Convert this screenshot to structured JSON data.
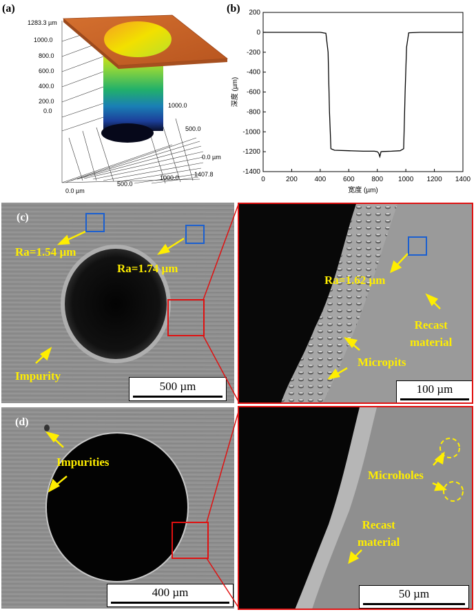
{
  "panel_labels": {
    "a": "(a)",
    "b": "(b)",
    "c": "(c)",
    "d": "(d)"
  },
  "panel_a": {
    "z_ticks": [
      "1283.3 µm",
      "1000.0",
      "800.0",
      "600.0",
      "400.0",
      "200.0",
      "0.0"
    ],
    "y_ticks": [
      "1000.0",
      "500.0",
      "0.0 µm"
    ],
    "x_ticks": [
      "0.0 µm",
      "500.0",
      "1000.0",
      "1407.8"
    ]
  },
  "chart_data": {
    "type": "line",
    "xlabel": "宽度 (µm)",
    "ylabel": "深度 (µm)",
    "xlim": [
      0,
      1400
    ],
    "ylim": [
      -1400,
      200
    ],
    "x_ticks": [
      0,
      200,
      400,
      600,
      800,
      1000,
      1200,
      1400
    ],
    "y_ticks": [
      200,
      0,
      -200,
      -400,
      -600,
      -800,
      -1000,
      -1200,
      -1400
    ],
    "series": [
      {
        "x": [
          0,
          100,
          200,
          300,
          400,
          440,
          455,
          465,
          475,
          500,
          600,
          700,
          780,
          800,
          810,
          818,
          826,
          840,
          900,
          960,
          985,
          995,
          1005,
          1020,
          1100,
          1200,
          1300,
          1400
        ],
        "y": [
          0,
          0,
          0,
          0,
          0,
          -10,
          -200,
          -800,
          -1170,
          -1185,
          -1190,
          -1195,
          -1195,
          -1200,
          -1215,
          -1250,
          -1200,
          -1198,
          -1195,
          -1190,
          -1170,
          -600,
          -150,
          -5,
          0,
          0,
          0,
          0
        ]
      }
    ]
  },
  "panel_c": {
    "ra_left": "Ra=1.54 µm",
    "ra_center": "Ra=1.74 µm",
    "impurity": "Impurity",
    "scalebar": "500 µm",
    "zoom_ra": "Ra=1.62 µm",
    "recast": [
      "Recast",
      "material"
    ],
    "micropits": "Micropits",
    "zoom_scalebar": "100 µm"
  },
  "panel_d": {
    "impurities": "Impurities",
    "scalebar": "400 µm",
    "microholes": "Microholes",
    "recast": [
      "Recast",
      "material"
    ],
    "zoom_scalebar": "50 µm"
  },
  "colors": {
    "annotation": "#ffee00",
    "ra_box": "#1a5fd0",
    "zoom_frame": "#e01010",
    "surface_top": "#c8632a"
  }
}
